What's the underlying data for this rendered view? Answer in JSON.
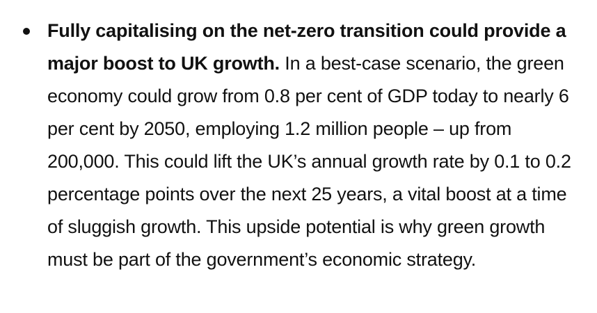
{
  "bullet": {
    "lead": "Fully capitalising on the net-zero transition could provide a major boost to UK growth.",
    "body": "In a best-case scenario, the green economy could grow from 0.8 per cent of GDP today to nearly 6 per cent by 2050, employing 1.2 million people – up from 200,000. This could lift the UK’s annual growth rate by 0.1 to 0.2 percentage points over the next 25 years, a vital boost at a time of sluggish growth. This upside potential is why green growth must be part of the government’s economic strategy."
  }
}
